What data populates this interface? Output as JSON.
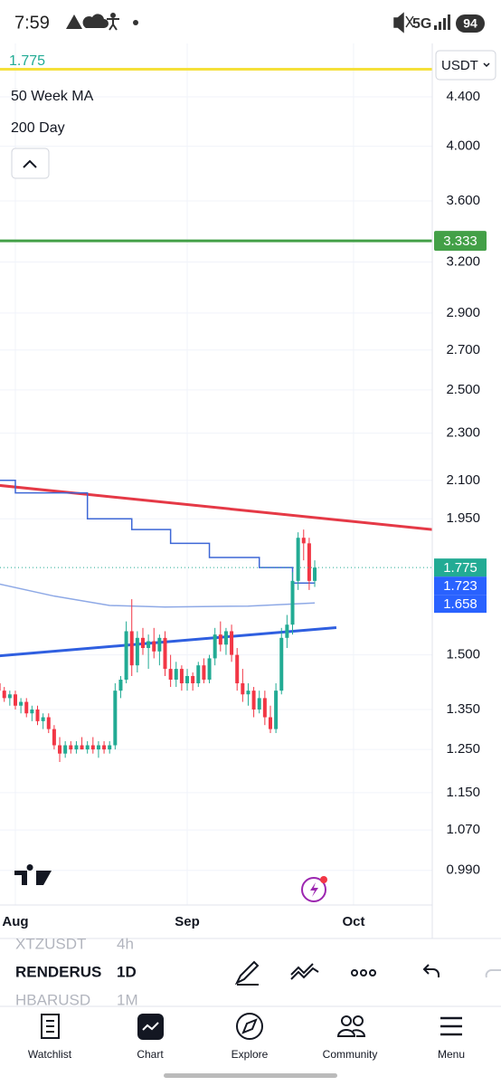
{
  "status_bar": {
    "time": "7:59",
    "network": "5G",
    "battery": "94"
  },
  "currency": "USDT",
  "chart_data": {
    "type": "candlestick",
    "indicators": [
      "50 Week MA",
      "200 Day"
    ],
    "candles": {
      "open": [
        1.42,
        1.4,
        1.38,
        1.39,
        1.36,
        1.37,
        1.34,
        1.35,
        1.32,
        1.33,
        1.3,
        1.26,
        1.24,
        1.26,
        1.25,
        1.26,
        1.25,
        1.26,
        1.25,
        1.26,
        1.25,
        1.26,
        1.4,
        1.43,
        1.57,
        1.47,
        1.55,
        1.52,
        1.54,
        1.51,
        1.55,
        1.46,
        1.43,
        1.46,
        1.42,
        1.44,
        1.42,
        1.47,
        1.43,
        1.49,
        1.56,
        1.53,
        1.57,
        1.5,
        1.42,
        1.39,
        1.4,
        1.35,
        1.38,
        1.33,
        1.3,
        1.4,
        1.55,
        1.59,
        1.73,
        1.88,
        1.86,
        1.73
      ],
      "high": [
        1.44,
        1.41,
        1.4,
        1.4,
        1.38,
        1.38,
        1.36,
        1.36,
        1.34,
        1.34,
        1.31,
        1.28,
        1.27,
        1.27,
        1.27,
        1.28,
        1.27,
        1.28,
        1.27,
        1.27,
        1.27,
        1.42,
        1.44,
        1.6,
        1.67,
        1.57,
        1.58,
        1.56,
        1.58,
        1.56,
        1.57,
        1.5,
        1.48,
        1.47,
        1.46,
        1.45,
        1.48,
        1.49,
        1.5,
        1.58,
        1.6,
        1.58,
        1.59,
        1.52,
        1.46,
        1.42,
        1.41,
        1.4,
        1.4,
        1.36,
        1.42,
        1.58,
        1.62,
        1.76,
        1.9,
        1.91,
        1.88,
        1.8
      ],
      "low": [
        1.39,
        1.37,
        1.36,
        1.35,
        1.34,
        1.33,
        1.32,
        1.31,
        1.3,
        1.29,
        1.25,
        1.22,
        1.23,
        1.24,
        1.24,
        1.25,
        1.24,
        1.24,
        1.23,
        1.24,
        1.24,
        1.25,
        1.38,
        1.42,
        1.44,
        1.45,
        1.5,
        1.46,
        1.49,
        1.47,
        1.44,
        1.41,
        1.41,
        1.4,
        1.4,
        1.4,
        1.41,
        1.42,
        1.42,
        1.47,
        1.51,
        1.5,
        1.48,
        1.4,
        1.37,
        1.36,
        1.33,
        1.34,
        1.31,
        1.29,
        1.29,
        1.39,
        1.52,
        1.56,
        1.7,
        1.8,
        1.7,
        1.71
      ],
      "close": [
        1.4,
        1.38,
        1.39,
        1.36,
        1.37,
        1.34,
        1.35,
        1.32,
        1.33,
        1.3,
        1.26,
        1.24,
        1.26,
        1.25,
        1.26,
        1.25,
        1.26,
        1.25,
        1.26,
        1.25,
        1.26,
        1.4,
        1.43,
        1.57,
        1.47,
        1.55,
        1.52,
        1.54,
        1.51,
        1.55,
        1.46,
        1.43,
        1.46,
        1.42,
        1.44,
        1.42,
        1.47,
        1.43,
        1.49,
        1.56,
        1.53,
        1.57,
        1.5,
        1.42,
        1.39,
        1.4,
        1.35,
        1.38,
        1.33,
        1.3,
        1.4,
        1.55,
        1.59,
        1.73,
        1.88,
        1.86,
        1.73,
        1.775
      ]
    },
    "up_color": "#22ab94",
    "down_color": "#f23645",
    "xlim": [
      0.23,
      78.2
    ],
    "xticks": [
      {
        "value": 3,
        "label": "Aug"
      },
      {
        "value": 34,
        "label": "Sep"
      },
      {
        "value": 64,
        "label": "Oct"
      }
    ],
    "ylim": [
      0.926,
      4.86
    ],
    "log_scale": true,
    "grid": true,
    "yticks": [
      {
        "value": 4.4,
        "label": "4.400"
      },
      {
        "value": 4.0,
        "label": "4.000"
      },
      {
        "value": 3.6,
        "label": "3.600"
      },
      {
        "value": 3.2,
        "label": "3.200"
      },
      {
        "value": 2.9,
        "label": "2.900"
      },
      {
        "value": 2.7,
        "label": "2.700"
      },
      {
        "value": 2.5,
        "label": "2.500"
      },
      {
        "value": 2.3,
        "label": "2.300"
      },
      {
        "value": 2.1,
        "label": "2.100"
      },
      {
        "value": 1.95,
        "label": "1.950"
      },
      {
        "value": 1.5,
        "label": "1.500"
      },
      {
        "value": 1.35,
        "label": "1.350"
      },
      {
        "value": 1.25,
        "label": "1.250"
      },
      {
        "value": 1.15,
        "label": "1.150"
      },
      {
        "value": 1.07,
        "label": "1.070"
      },
      {
        "value": 0.99,
        "label": "0.990"
      }
    ],
    "horizontal_lines": [
      {
        "value": 4.64,
        "color": "#f5e03a"
      },
      {
        "value": 3.333,
        "color": "#43a047",
        "tagged": true
      }
    ],
    "trend_lines": [
      {
        "x": [
          0,
          78.2
        ],
        "values": [
          2.08,
          1.91
        ],
        "color": "#e53946"
      },
      {
        "x": [
          0,
          60.9
        ],
        "values": [
          1.497,
          1.581
        ],
        "color": "#2f5fe0"
      }
    ],
    "series": [
      {
        "name": "50 Week MA",
        "color": "#3d67d6",
        "step": true,
        "x": [
          0,
          3,
          16,
          24,
          31,
          38,
          47,
          53,
          57
        ],
        "values": [
          2.1,
          2.05,
          1.95,
          1.91,
          1.86,
          1.81,
          1.775,
          1.723,
          1.723
        ]
      },
      {
        "name": "200 Day",
        "color": "#8ea9e6",
        "step": false,
        "x": [
          0,
          10,
          20,
          30,
          45,
          57
        ],
        "values": [
          1.72,
          1.68,
          1.65,
          1.645,
          1.648,
          1.658
        ]
      }
    ]
  },
  "toolbar": {
    "symbols": [
      {
        "symbol": "XTZUSDT",
        "interval": "4h"
      },
      {
        "symbol": "RENDERUS",
        "interval": "1D"
      },
      {
        "symbol": "HBARUSD",
        "interval": "1M"
      }
    ]
  },
  "nav": [
    "Watchlist",
    "Chart",
    "Explore",
    "Community",
    "Menu"
  ]
}
